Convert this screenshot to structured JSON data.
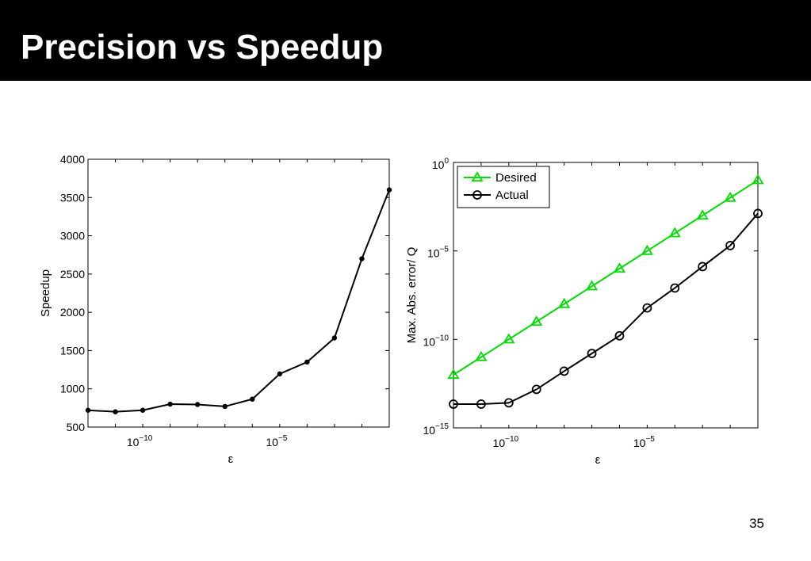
{
  "slide": {
    "title": "Precision vs Speedup",
    "number": "35"
  },
  "colors": {
    "desired": "#00dd00",
    "actual": "#000000"
  },
  "chart_data": [
    {
      "type": "line",
      "xlabel": "ε",
      "ylabel": "Speedup",
      "x_scale": "log",
      "y_scale": "linear",
      "xlim": [
        1e-12,
        0.1
      ],
      "ylim": [
        500,
        4000
      ],
      "grid": false,
      "xticks": [
        {
          "value": 1e-10,
          "base": "10",
          "exp": "−10"
        },
        {
          "value": 1e-05,
          "base": "10",
          "exp": "−5"
        }
      ],
      "yticks": [
        500,
        1000,
        1500,
        2000,
        2500,
        3000,
        3500,
        4000
      ],
      "series": [
        {
          "x": [
            1e-12,
            1e-11,
            1e-10,
            1e-09,
            1e-08,
            1e-07,
            1e-06,
            1e-05,
            0.0001,
            0.001,
            0.01,
            0.1
          ],
          "y": [
            720,
            700,
            720,
            800,
            795,
            770,
            865,
            1195,
            1350,
            1665,
            2700,
            3600
          ]
        }
      ]
    },
    {
      "type": "line",
      "xlabel": "ε",
      "ylabel": "Max. Abs. error/ Q",
      "x_scale": "log",
      "y_scale": "log",
      "xlim": [
        1e-12,
        0.1
      ],
      "ylim": [
        1e-15,
        1
      ],
      "grid": false,
      "legend_position": "top-left",
      "xticks": [
        {
          "value": 1e-10,
          "base": "10",
          "exp": "−10"
        },
        {
          "value": 1e-05,
          "base": "10",
          "exp": "−5"
        }
      ],
      "yticks": [
        {
          "value": 1,
          "base": "10",
          "exp": "0"
        },
        {
          "value": 1e-05,
          "base": "10",
          "exp": "−5"
        },
        {
          "value": 1e-10,
          "base": "10",
          "exp": "−10"
        },
        {
          "value": 1e-15,
          "base": "10",
          "exp": "−15"
        }
      ],
      "series": [
        {
          "name": "Desired",
          "marker": "triangle",
          "x": [
            1e-12,
            1e-11,
            1e-10,
            1e-09,
            1e-08,
            1e-07,
            1e-06,
            1e-05,
            0.0001,
            0.001,
            0.01,
            0.1
          ],
          "y": [
            1e-12,
            1e-11,
            1e-10,
            1e-09,
            1e-08,
            1e-07,
            1e-06,
            1e-05,
            0.0001,
            0.001,
            0.01,
            0.1
          ]
        },
        {
          "name": "Actual",
          "marker": "circle",
          "x": [
            1e-12,
            1e-11,
            1e-10,
            1e-09,
            1e-08,
            1e-07,
            1e-06,
            1e-05,
            0.0001,
            0.001,
            0.01,
            0.1
          ],
          "y": [
            2.2e-14,
            2.2e-14,
            2.6e-14,
            1.5e-13,
            1.6e-12,
            1.6e-11,
            1.6e-10,
            6e-09,
            8e-08,
            1.3e-06,
            2e-05,
            0.0013
          ]
        }
      ]
    }
  ]
}
